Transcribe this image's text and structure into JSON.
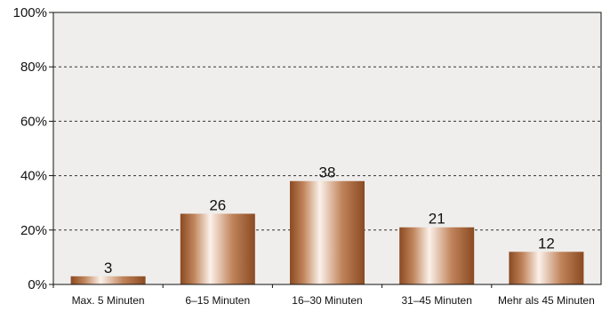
{
  "chart_data": {
    "type": "bar",
    "categories": [
      "Max. 5 Minuten",
      "6–15 Minuten",
      "16–30 Minuten",
      "31–45 Minuten",
      "Mehr als 45 Minuten"
    ],
    "values": [
      3,
      26,
      38,
      21,
      12
    ],
    "data_labels": [
      "3",
      "26",
      "38",
      "21",
      "12"
    ],
    "ylim": [
      0,
      100
    ],
    "yticks": [
      0,
      20,
      40,
      60,
      80,
      100
    ],
    "ytick_labels": [
      "0%",
      "20%",
      "40%",
      "60%",
      "80%",
      "100%"
    ],
    "grid": true,
    "legend": "none",
    "colors": {
      "plot_background": "#efeeec",
      "bar_dark": "#8a4a22",
      "bar_mid": "#c0835a",
      "bar_light": "#fbf1ea",
      "grid": "#333333",
      "axis": "#111111"
    }
  }
}
